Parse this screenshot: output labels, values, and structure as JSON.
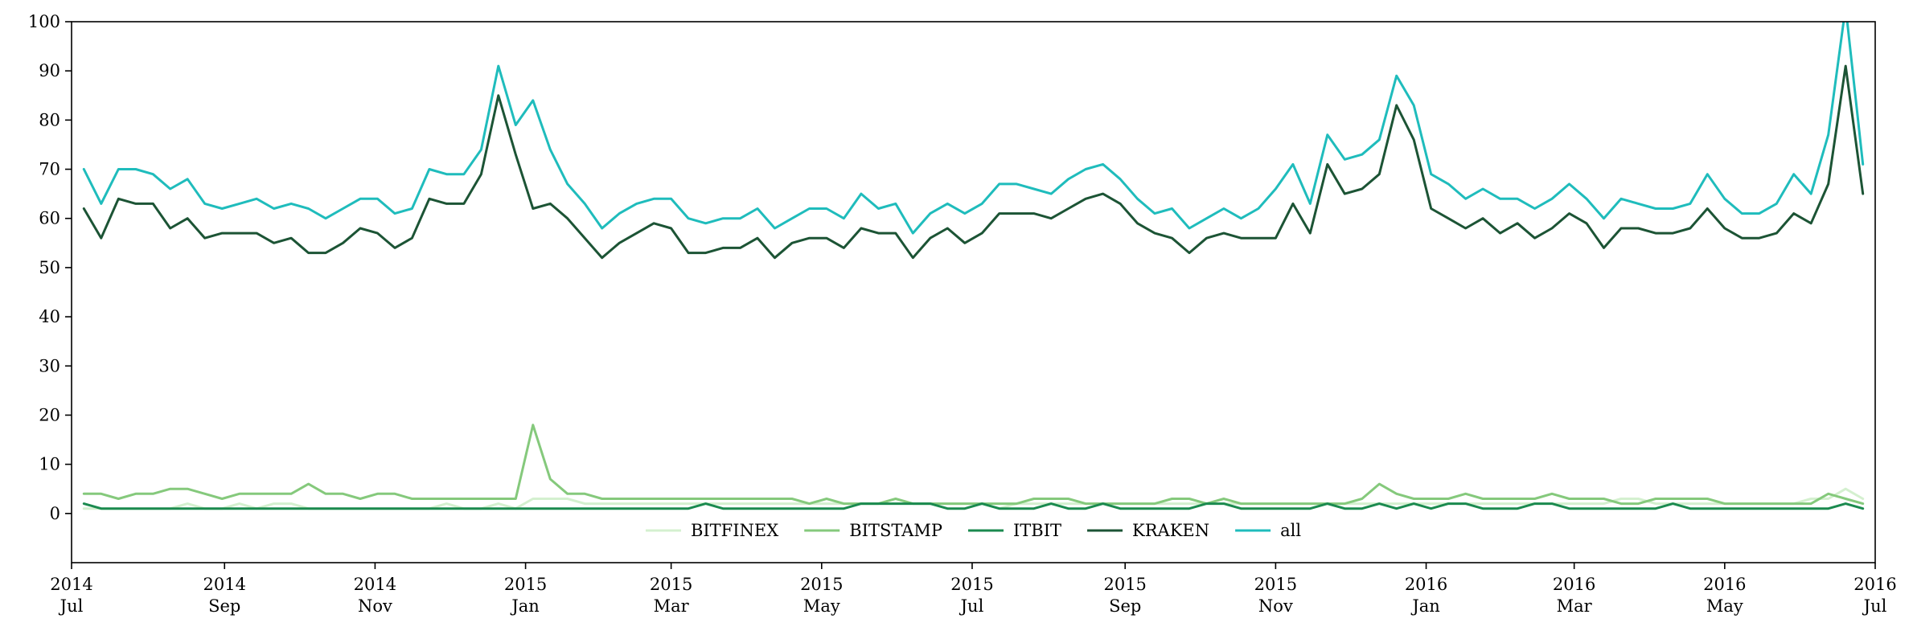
{
  "chart_data": {
    "type": "line",
    "title": "",
    "xlabel": "",
    "ylabel": "",
    "ylim": [
      -10,
      100
    ],
    "y_ticks": [
      0,
      10,
      20,
      30,
      40,
      50,
      60,
      70,
      80,
      90,
      100
    ],
    "x_ticks": [
      {
        "x": "2014-07-01",
        "year": "2014",
        "month": "Jul"
      },
      {
        "x": "2014-09-01",
        "year": "2014",
        "month": "Sep"
      },
      {
        "x": "2014-11-01",
        "year": "2014",
        "month": "Nov"
      },
      {
        "x": "2015-01-01",
        "year": "2015",
        "month": "Jan"
      },
      {
        "x": "2015-03-01",
        "year": "2015",
        "month": "Mar"
      },
      {
        "x": "2015-05-01",
        "year": "2015",
        "month": "May"
      },
      {
        "x": "2015-07-01",
        "year": "2015",
        "month": "Jul"
      },
      {
        "x": "2015-09-01",
        "year": "2015",
        "month": "Sep"
      },
      {
        "x": "2015-11-01",
        "year": "2015",
        "month": "Nov"
      },
      {
        "x": "2016-01-01",
        "year": "2016",
        "month": "Jan"
      },
      {
        "x": "2016-03-01",
        "year": "2016",
        "month": "Mar"
      },
      {
        "x": "2016-05-01",
        "year": "2016",
        "month": "May"
      },
      {
        "x": "2016-07-01",
        "year": "2016",
        "month": "Jul"
      }
    ],
    "xlim": [
      "2014-07-01",
      "2016-07-01"
    ],
    "grid": false,
    "legend_position": "bottom-center",
    "x": [
      "2014-07-06",
      "2014-07-13",
      "2014-07-20",
      "2014-07-27",
      "2014-08-03",
      "2014-08-10",
      "2014-08-17",
      "2014-08-24",
      "2014-08-31",
      "2014-09-07",
      "2014-09-14",
      "2014-09-21",
      "2014-09-28",
      "2014-10-05",
      "2014-10-12",
      "2014-10-19",
      "2014-10-26",
      "2014-11-02",
      "2014-11-09",
      "2014-11-16",
      "2014-11-23",
      "2014-11-30",
      "2014-12-07",
      "2014-12-14",
      "2014-12-21",
      "2014-12-28",
      "2015-01-04",
      "2015-01-11",
      "2015-01-18",
      "2015-01-25",
      "2015-02-01",
      "2015-02-08",
      "2015-02-15",
      "2015-02-22",
      "2015-03-01",
      "2015-03-08",
      "2015-03-15",
      "2015-03-22",
      "2015-03-29",
      "2015-04-05",
      "2015-04-12",
      "2015-04-19",
      "2015-04-26",
      "2015-05-03",
      "2015-05-10",
      "2015-05-17",
      "2015-05-24",
      "2015-05-31",
      "2015-06-07",
      "2015-06-14",
      "2015-06-21",
      "2015-06-28",
      "2015-07-05",
      "2015-07-12",
      "2015-07-19",
      "2015-07-26",
      "2015-08-02",
      "2015-08-09",
      "2015-08-16",
      "2015-08-23",
      "2015-08-30",
      "2015-09-06",
      "2015-09-13",
      "2015-09-20",
      "2015-09-27",
      "2015-10-04",
      "2015-10-11",
      "2015-10-18",
      "2015-10-25",
      "2015-11-01",
      "2015-11-08",
      "2015-11-15",
      "2015-11-22",
      "2015-11-29",
      "2015-12-06",
      "2015-12-13",
      "2015-12-20",
      "2015-12-27",
      "2016-01-03",
      "2016-01-10",
      "2016-01-17",
      "2016-01-24",
      "2016-01-31",
      "2016-02-07",
      "2016-02-14",
      "2016-02-21",
      "2016-02-28",
      "2016-03-06",
      "2016-03-13",
      "2016-03-20",
      "2016-03-27",
      "2016-04-03",
      "2016-04-10",
      "2016-04-17",
      "2016-04-24",
      "2016-05-01",
      "2016-05-08",
      "2016-05-15",
      "2016-05-22",
      "2016-05-29",
      "2016-06-05",
      "2016-06-12",
      "2016-06-19",
      "2016-06-26"
    ],
    "series": [
      {
        "name": "BITFINEX",
        "color": "#d4f0cf",
        "values": [
          1,
          1,
          1,
          1,
          1,
          1,
          2,
          1,
          1,
          2,
          1,
          2,
          2,
          1,
          1,
          1,
          1,
          1,
          1,
          1,
          1,
          2,
          1,
          1,
          2,
          1,
          3,
          3,
          3,
          2,
          2,
          2,
          2,
          2,
          2,
          2,
          2,
          2,
          2,
          2,
          2,
          2,
          2,
          2,
          2,
          2,
          2,
          2,
          2,
          2,
          2,
          2,
          2,
          1,
          2,
          2,
          2,
          2,
          2,
          2,
          2,
          2,
          2,
          2,
          2,
          2,
          2,
          2,
          2,
          2,
          2,
          2,
          2,
          2,
          2,
          2,
          2,
          2,
          2,
          2,
          2,
          2,
          2,
          2,
          2,
          2,
          2,
          2,
          2,
          3,
          3,
          2,
          2,
          2,
          2,
          2,
          2,
          2,
          2,
          2,
          3,
          3,
          5,
          3
        ]
      },
      {
        "name": "BITSTAMP",
        "color": "#85c97c",
        "values": [
          4,
          4,
          3,
          4,
          4,
          5,
          5,
          4,
          3,
          4,
          4,
          4,
          4,
          6,
          4,
          4,
          3,
          4,
          4,
          3,
          3,
          3,
          3,
          3,
          3,
          3,
          18,
          7,
          4,
          4,
          3,
          3,
          3,
          3,
          3,
          3,
          3,
          3,
          3,
          3,
          3,
          3,
          2,
          3,
          2,
          2,
          2,
          3,
          2,
          2,
          2,
          2,
          2,
          2,
          2,
          3,
          3,
          3,
          2,
          2,
          2,
          2,
          2,
          3,
          3,
          2,
          3,
          2,
          2,
          2,
          2,
          2,
          2,
          2,
          3,
          6,
          4,
          3,
          3,
          3,
          4,
          3,
          3,
          3,
          3,
          4,
          3,
          3,
          3,
          2,
          2,
          3,
          3,
          3,
          3,
          2,
          2,
          2,
          2,
          2,
          2,
          4,
          3,
          2
        ]
      },
      {
        "name": "ITBIT",
        "color": "#1b8a4f",
        "values": [
          2,
          1,
          1,
          1,
          1,
          1,
          1,
          1,
          1,
          1,
          1,
          1,
          1,
          1,
          1,
          1,
          1,
          1,
          1,
          1,
          1,
          1,
          1,
          1,
          1,
          1,
          1,
          1,
          1,
          1,
          1,
          1,
          1,
          1,
          1,
          1,
          2,
          1,
          1,
          1,
          1,
          1,
          1,
          1,
          1,
          2,
          2,
          2,
          2,
          2,
          1,
          1,
          2,
          1,
          1,
          1,
          2,
          1,
          1,
          2,
          1,
          1,
          1,
          1,
          1,
          2,
          2,
          1,
          1,
          1,
          1,
          1,
          2,
          1,
          1,
          2,
          1,
          2,
          1,
          2,
          2,
          1,
          1,
          1,
          2,
          2,
          1,
          1,
          1,
          1,
          1,
          1,
          2,
          1,
          1,
          1,
          1,
          1,
          1,
          1,
          1,
          1,
          2,
          1
        ]
      },
      {
        "name": "KRAKEN",
        "color": "#1c5435",
        "values": [
          62,
          56,
          64,
          63,
          63,
          58,
          60,
          56,
          57,
          57,
          57,
          55,
          56,
          53,
          53,
          55,
          58,
          57,
          54,
          56,
          64,
          63,
          63,
          69,
          85,
          73,
          62,
          63,
          60,
          56,
          52,
          55,
          57,
          59,
          58,
          53,
          53,
          54,
          54,
          56,
          52,
          55,
          56,
          56,
          54,
          58,
          57,
          57,
          52,
          56,
          58,
          55,
          57,
          61,
          61,
          61,
          60,
          62,
          64,
          65,
          63,
          59,
          57,
          56,
          53,
          56,
          57,
          56,
          56,
          56,
          63,
          57,
          71,
          65,
          66,
          69,
          83,
          76,
          62,
          60,
          58,
          60,
          57,
          59,
          56,
          58,
          61,
          59,
          54,
          58,
          58,
          57,
          57,
          58,
          62,
          58,
          56,
          56,
          57,
          61,
          59,
          67,
          91,
          65
        ]
      },
      {
        "name": "all",
        "color": "#1fbcbc",
        "values": [
          70,
          63,
          70,
          70,
          69,
          66,
          68,
          63,
          62,
          63,
          64,
          62,
          63,
          62,
          60,
          62,
          64,
          64,
          61,
          62,
          70,
          69,
          69,
          74,
          91,
          79,
          84,
          74,
          67,
          63,
          58,
          61,
          63,
          64,
          64,
          60,
          59,
          60,
          60,
          62,
          58,
          60,
          62,
          62,
          60,
          65,
          62,
          63,
          57,
          61,
          63,
          61,
          63,
          67,
          67,
          66,
          65,
          68,
          70,
          71,
          68,
          64,
          61,
          62,
          58,
          60,
          62,
          60,
          62,
          66,
          71,
          63,
          77,
          72,
          73,
          76,
          89,
          83,
          69,
          67,
          64,
          66,
          64,
          64,
          62,
          64,
          67,
          64,
          60,
          64,
          63,
          62,
          62,
          63,
          69,
          64,
          61,
          61,
          63,
          69,
          65,
          77,
          103,
          71
        ]
      }
    ]
  }
}
